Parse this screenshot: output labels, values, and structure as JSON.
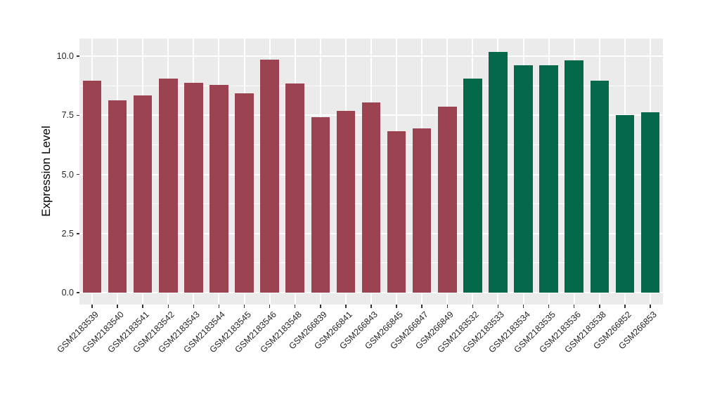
{
  "chart_data": {
    "type": "bar",
    "title": "",
    "xlabel": "",
    "ylabel": "Expression Level",
    "ylim": [
      0,
      10.74
    ],
    "grid": true,
    "legend": "none",
    "y_ticks": [
      {
        "value": 0.0,
        "label": "0.0"
      },
      {
        "value": 2.5,
        "label": "2.5"
      },
      {
        "value": 5.0,
        "label": "5.0"
      },
      {
        "value": 7.5,
        "label": "7.5"
      },
      {
        "value": 10.0,
        "label": "10.0"
      }
    ],
    "y_minor_ticks": [
      1.25,
      3.75,
      6.25,
      8.75
    ],
    "categories": [
      "GSM2183539",
      "GSM2183540",
      "GSM2183541",
      "GSM2183542",
      "GSM2183543",
      "GSM2183544",
      "GSM2183545",
      "GSM2183546",
      "GSM2183548",
      "GSM266839",
      "GSM266841",
      "GSM266843",
      "GSM266845",
      "GSM266847",
      "GSM266849",
      "GSM2183532",
      "GSM2183533",
      "GSM2183534",
      "GSM2183535",
      "GSM2183536",
      "GSM2183538",
      "GSM266852",
      "GSM266853"
    ],
    "values": [
      8.95,
      8.14,
      8.33,
      9.06,
      8.88,
      8.78,
      8.44,
      9.85,
      8.84,
      7.41,
      7.68,
      8.05,
      6.83,
      6.95,
      7.87,
      9.06,
      10.18,
      9.62,
      9.62,
      9.82,
      8.97,
      7.51,
      7.62
    ],
    "groups": [
      "group1",
      "group1",
      "group1",
      "group1",
      "group1",
      "group1",
      "group1",
      "group1",
      "group1",
      "group1",
      "group1",
      "group1",
      "group1",
      "group1",
      "group1",
      "group2",
      "group2",
      "group2",
      "group2",
      "group2",
      "group2",
      "group2",
      "group2"
    ],
    "group_colors": {
      "group1": "#9C4352",
      "group2": "#04684B"
    },
    "style": {
      "panel_background": "#EBEBEB",
      "grid_color": "#FFFFFF",
      "tick_color": "#333333",
      "axis_text_color": "#262626",
      "axis_title_color": "#000000",
      "figure_background": "#FFFFFF"
    }
  }
}
